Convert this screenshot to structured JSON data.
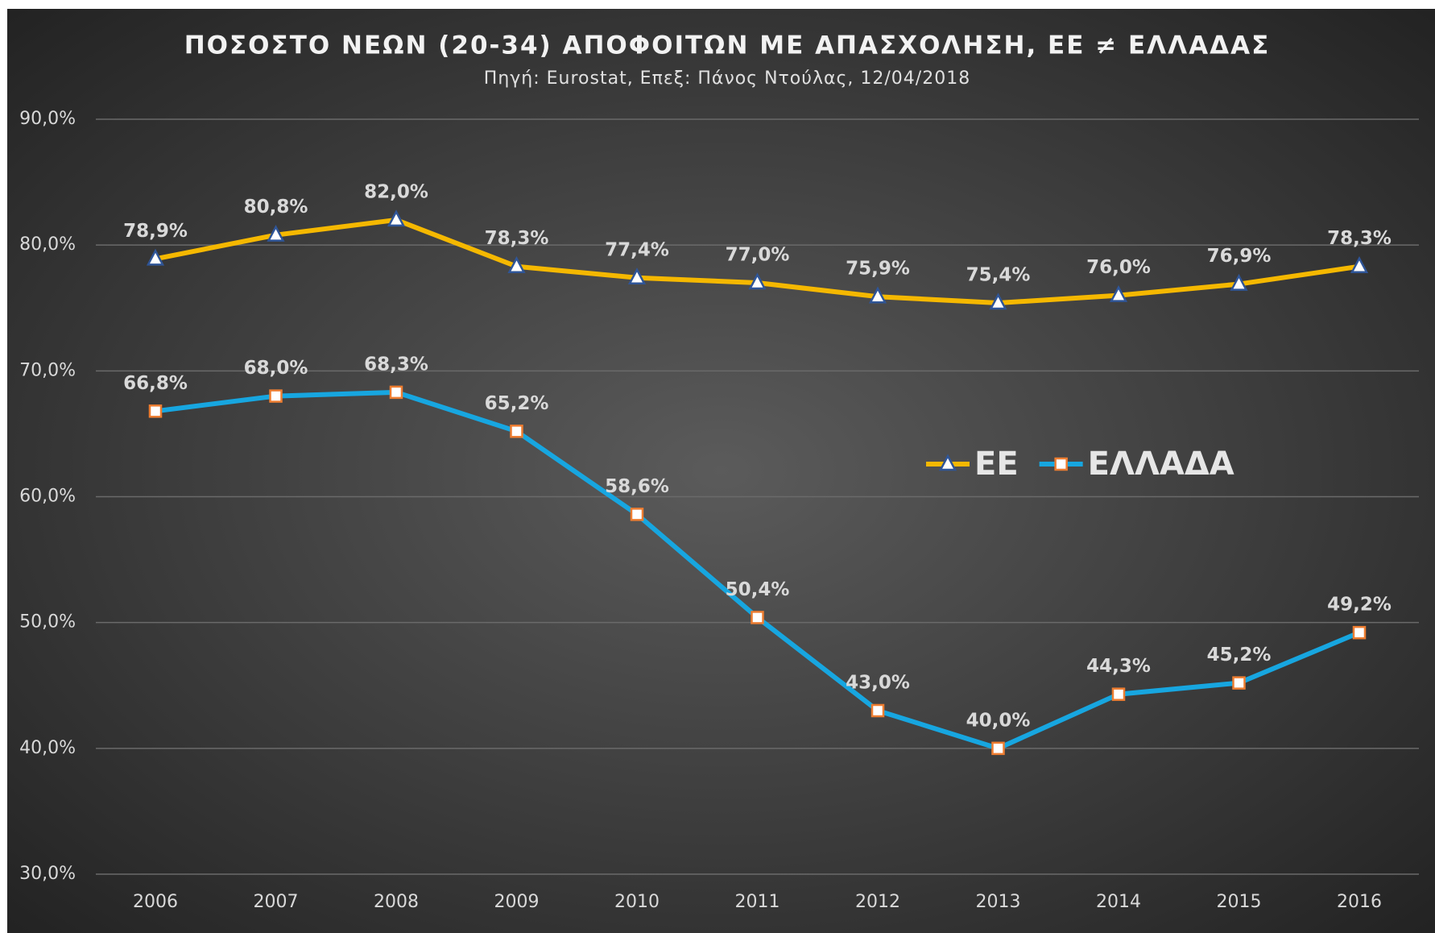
{
  "chart_data": {
    "type": "line",
    "title": "ΠΟΣΟΣΤΟ ΝΕΩΝ (20-34) ΑΠΟΦΟΙΤΩΝ ΜΕ ΑΠΑΣΧΟΛΗΣΗ, ΕΕ ≠ ΕΛΛΑΔΑΣ",
    "subtitle": "Πηγή: Eurostat, Επεξ: Πάνος Ντούλας, 12/04/2018",
    "categories": [
      "2006",
      "2007",
      "2008",
      "2009",
      "2010",
      "2011",
      "2012",
      "2013",
      "2014",
      "2015",
      "2016"
    ],
    "series": [
      {
        "name": "ΕΕ",
        "color": "#f5b800",
        "marker": "triangle",
        "marker_edge_color": "#2f5597",
        "values": [
          78.9,
          80.8,
          82.0,
          78.3,
          77.4,
          77.0,
          75.9,
          75.4,
          76.0,
          76.9,
          78.3
        ],
        "value_labels": [
          "78,9%",
          "80,8%",
          "82,0%",
          "78,3%",
          "77,4%",
          "77,0%",
          "75,9%",
          "75,4%",
          "76,0%",
          "76,9%",
          "78,3%"
        ]
      },
      {
        "name": "ΕΛΛΑΔΑ",
        "color": "#17a6e0",
        "marker": "square",
        "marker_edge_color": "#ed7d31",
        "values": [
          66.8,
          68.0,
          68.3,
          65.2,
          58.6,
          50.4,
          43.0,
          40.0,
          44.3,
          45.2,
          49.2
        ],
        "value_labels": [
          "66,8%",
          "68,0%",
          "68,3%",
          "65,2%",
          "58,6%",
          "50,4%",
          "43,0%",
          "40,0%",
          "44,3%",
          "45,2%",
          "49,2%"
        ]
      }
    ],
    "ylim": [
      30,
      90
    ],
    "yticks": [
      {
        "value": 30,
        "label": "30,0%"
      },
      {
        "value": 40,
        "label": "40,0%"
      },
      {
        "value": 50,
        "label": "50,0%"
      },
      {
        "value": 60,
        "label": "60,0%"
      },
      {
        "value": 70,
        "label": "70,0%"
      },
      {
        "value": 80,
        "label": "80,0%"
      },
      {
        "value": 90,
        "label": "90,0%"
      }
    ],
    "grid": true,
    "legend": "right"
  }
}
